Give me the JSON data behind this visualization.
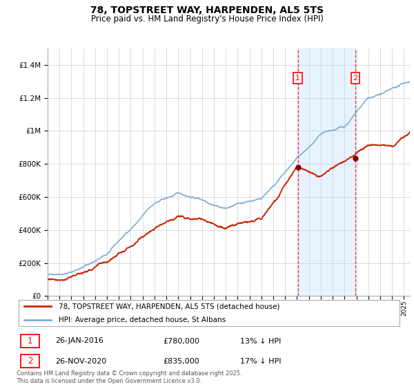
{
  "title1": "78, TOPSTREET WAY, HARPENDEN, AL5 5TS",
  "title2": "Price paid vs. HM Land Registry's House Price Index (HPI)",
  "ylim": [
    0,
    1500000
  ],
  "yticks": [
    0,
    200000,
    400000,
    600000,
    800000,
    1000000,
    1200000,
    1400000
  ],
  "hpi_color": "#7bafd4",
  "price_color": "#cc2200",
  "marker_color": "#8b0000",
  "vline_color": "#dd3333",
  "shade_color": "#ddeeff",
  "legend_house": "78, TOPSTREET WAY, HARPENDEN, AL5 5TS (detached house)",
  "legend_hpi": "HPI: Average price, detached house, St Albans",
  "annotation1_label": "1",
  "annotation1_date": "26-JAN-2016",
  "annotation1_price": "£780,000",
  "annotation1_hpi": "13% ↓ HPI",
  "annotation2_label": "2",
  "annotation2_date": "26-NOV-2020",
  "annotation2_price": "£835,000",
  "annotation2_hpi": "17% ↓ HPI",
  "footer": "Contains HM Land Registry data © Crown copyright and database right 2025.\nThis data is licensed under the Open Government Licence v3.0.",
  "vline1_x": 2016.07,
  "vline2_x": 2020.91,
  "sale1_x": 2016.07,
  "sale1_y": 780000,
  "sale2_x": 2020.91,
  "sale2_y": 835000,
  "xmin": 1995,
  "xmax": 2025.5
}
